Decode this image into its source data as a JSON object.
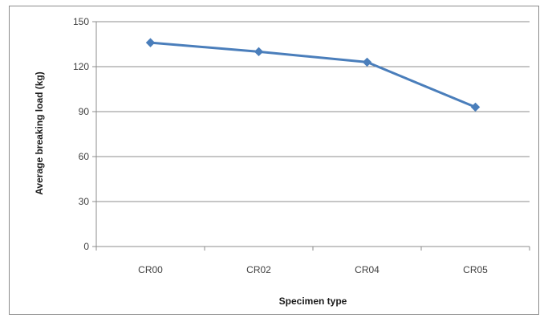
{
  "chart_data": {
    "type": "line",
    "title": "",
    "xlabel": "Specimen type",
    "ylabel": "Average breaking load (kg)",
    "categories": [
      "CR00",
      "CR02",
      "CR04",
      "CR05"
    ],
    "series": [
      {
        "values": [
          136,
          130,
          123,
          93
        ],
        "color": "#4a7ebb",
        "marker": "diamond"
      }
    ],
    "ylim": [
      0,
      150
    ],
    "yticks": [
      0,
      30,
      60,
      90,
      120,
      150
    ],
    "grid": true,
    "legend": "none"
  }
}
